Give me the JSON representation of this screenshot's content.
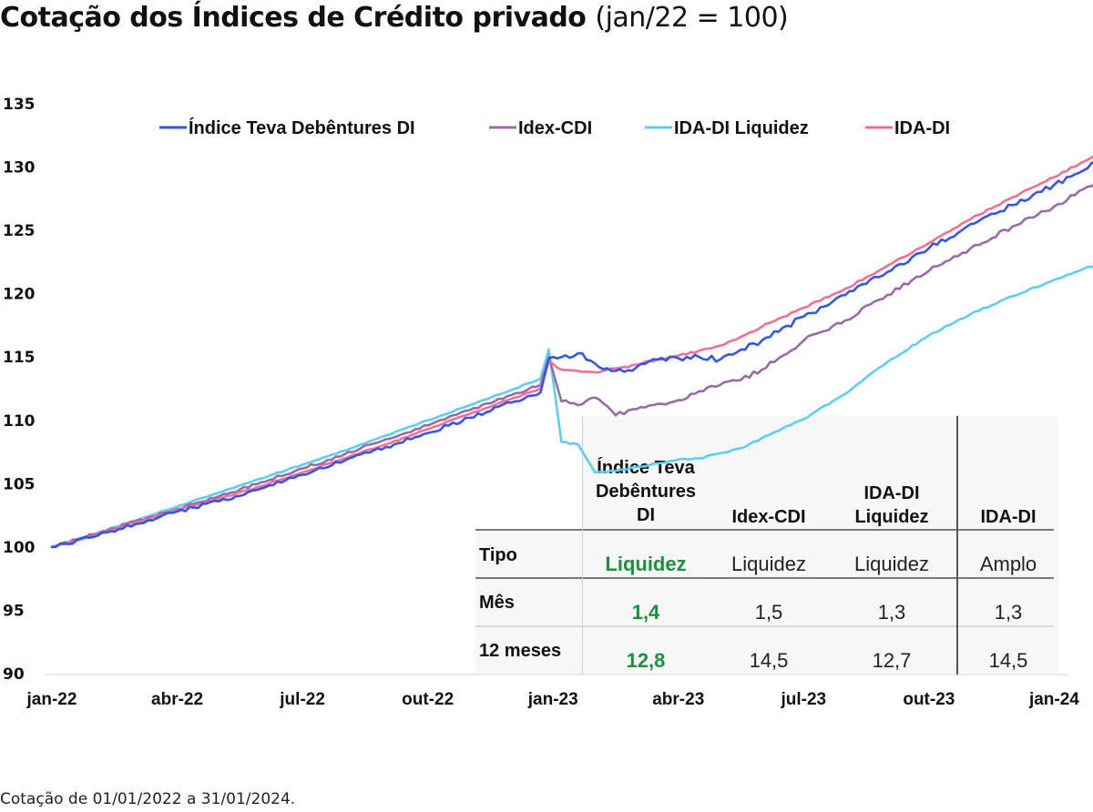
{
  "title": {
    "main": "Cotação dos Índices de Crédito privado",
    "sub": "(jan/22 = 100)"
  },
  "footnote": "Cotação de 01/01/2022 a 31/01/2024.",
  "chart_data": {
    "type": "line",
    "title": "Cotação dos Índices de Crédito privado (jan/22 = 100)",
    "xlabel": "",
    "ylabel": "",
    "ylim": [
      90,
      135
    ],
    "yticks": [
      "135",
      "130",
      "125",
      "120",
      "115",
      "110",
      "105",
      "100",
      "95",
      "90"
    ],
    "ytick_values": [
      135,
      130,
      125,
      120,
      115,
      110,
      105,
      100,
      95,
      90
    ],
    "xticks": [
      "jan-22",
      "abr-22",
      "jul-22",
      "out-22",
      "jan-23",
      "abr-23",
      "jul-23",
      "out-23",
      "jan-24"
    ],
    "xtick_months": [
      0,
      3,
      6,
      9,
      12,
      15,
      18,
      21,
      24
    ],
    "xlim_months": [
      0,
      25
    ],
    "grid": false,
    "legend_position": "top",
    "x_months": [
      0,
      1,
      2,
      3,
      4,
      5,
      6,
      7,
      8,
      9,
      10,
      11,
      11.7,
      11.9,
      12.2,
      12.6,
      13.0,
      13.5,
      14.0,
      14.5,
      15.0,
      15.5,
      16.0,
      16.5,
      17.0,
      18.0,
      19.0,
      20.0,
      21.0,
      22.0,
      23.0,
      24.0,
      25.0
    ],
    "series": [
      {
        "name": "Índice Teva Debêntures DI",
        "color": "#3355e8",
        "values": [
          100.0,
          100.8,
          101.8,
          102.8,
          103.6,
          104.6,
          105.7,
          106.8,
          107.9,
          109.0,
          110.2,
          111.4,
          112.2,
          114.9,
          115.0,
          115.3,
          114.5,
          113.9,
          114.2,
          114.8,
          114.9,
          115.0,
          114.8,
          115.6,
          116.3,
          118.2,
          119.9,
          121.7,
          123.6,
          125.5,
          127.0,
          128.6,
          130.3
        ]
      },
      {
        "name": "Idex-CDI",
        "color": "#9b6aa6",
        "values": [
          100.0,
          101.0,
          102.0,
          103.0,
          104.0,
          105.1,
          106.2,
          107.3,
          108.5,
          109.6,
          110.8,
          112.0,
          112.8,
          115.0,
          111.5,
          111.2,
          111.8,
          110.4,
          110.9,
          111.3,
          111.6,
          112.3,
          112.8,
          113.2,
          114.0,
          116.3,
          117.9,
          119.9,
          121.8,
          123.6,
          125.3,
          126.9,
          128.7
        ]
      },
      {
        "name": "IDA-DI Liquidez",
        "color": "#5ccff0",
        "values": [
          100.0,
          101.0,
          102.1,
          103.2,
          104.3,
          105.4,
          106.5,
          107.6,
          108.8,
          110.0,
          111.2,
          112.4,
          113.3,
          115.6,
          108.3,
          108.1,
          105.9,
          106.0,
          106.3,
          106.6,
          106.9,
          107.0,
          107.4,
          107.8,
          108.6,
          110.1,
          112.1,
          114.6,
          116.7,
          118.4,
          119.8,
          121.1,
          122.3
        ]
      },
      {
        "name": "IDA-DI",
        "color": "#f07090",
        "values": [
          100.0,
          100.9,
          101.9,
          102.9,
          103.8,
          104.8,
          105.9,
          107.0,
          108.1,
          109.3,
          110.5,
          111.7,
          112.5,
          114.7,
          114.0,
          113.9,
          113.8,
          114.1,
          114.4,
          114.8,
          115.1,
          115.5,
          115.9,
          116.6,
          117.4,
          118.9,
          120.4,
          122.2,
          124.0,
          125.9,
          127.6,
          129.2,
          131.0
        ]
      }
    ]
  },
  "table": {
    "headers": [
      {
        "lines": [
          "Índice Teva",
          "Debêntures",
          "DI"
        ],
        "highlight": true
      },
      {
        "lines": [
          "Idex-CDI"
        ],
        "highlight": false
      },
      {
        "lines": [
          "IDA-DI",
          "Liquidez"
        ],
        "highlight": false
      },
      {
        "lines": [
          "IDA-DI"
        ],
        "highlight": false
      }
    ],
    "header_text": {
      "col0_l1": "Índice Teva",
      "col0_l2": "Debêntures",
      "col0_l3": "DI",
      "col1": "Idex-CDI",
      "col2_l1": "IDA-DI",
      "col2_l2": "Liquidez",
      "col3": "IDA-DI"
    },
    "rows": [
      {
        "label": "Tipo",
        "values": [
          "Liquidez",
          "Liquidez",
          "Liquidez",
          "Amplo"
        ]
      },
      {
        "label": "Mês",
        "values": [
          "1,4",
          "1,5",
          "1,3",
          "1,3"
        ]
      },
      {
        "label": "12 meses",
        "values": [
          "12,8",
          "14,5",
          "12,7",
          "14,5"
        ]
      }
    ],
    "highlight_color": "#1e8f3e"
  }
}
